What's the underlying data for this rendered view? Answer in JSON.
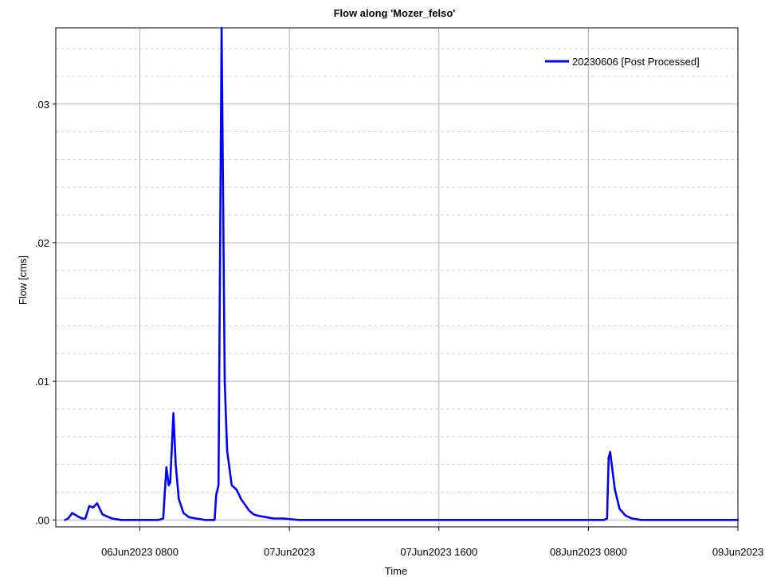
{
  "chart_data": {
    "type": "line",
    "title": "Flow along 'Mozer_felso'",
    "xlabel": "Time",
    "ylabel": "Flow [cms]",
    "x_tick_labels": [
      "06Jun2023 0800",
      "07Jun2023",
      "07Jun2023 1600",
      "08Jun2023 0800",
      "09Jun2023"
    ],
    "x_tick_values": [
      "2023-06-06 08:00",
      "2023-06-07 00:00",
      "2023-06-07 16:00",
      "2023-06-08 08:00",
      "2023-06-09 00:00"
    ],
    "xlim": [
      "2023-06-05 23:00",
      "2023-06-09 00:00"
    ],
    "y_tick_labels": [
      ".00",
      ".01",
      ".02",
      ".03"
    ],
    "y_tick_values": [
      0,
      0.01,
      0.02,
      0.03
    ],
    "ylim": [
      -0.0005,
      0.0355
    ],
    "grid": true,
    "legend_position": "top-right",
    "series": [
      {
        "name": "20230606 [Post Processed]",
        "color": "#0000ff",
        "x": [
          "2023-06-06 00:00",
          "2023-06-06 00:20",
          "2023-06-06 00:45",
          "2023-06-06 01:30",
          "2023-06-06 01:50",
          "2023-06-06 02:10",
          "2023-06-06 02:35",
          "2023-06-06 03:00",
          "2023-06-06 03:25",
          "2023-06-06 04:00",
          "2023-06-06 05:00",
          "2023-06-06 06:00",
          "2023-06-06 07:00",
          "2023-06-06 08:00",
          "2023-06-06 09:00",
          "2023-06-06 10:00",
          "2023-06-06 10:30",
          "2023-06-06 10:50",
          "2023-06-06 11:05",
          "2023-06-06 11:15",
          "2023-06-06 11:35",
          "2023-06-06 11:50",
          "2023-06-06 12:10",
          "2023-06-06 12:40",
          "2023-06-06 13:15",
          "2023-06-06 14:00",
          "2023-06-06 15:00",
          "2023-06-06 16:00",
          "2023-06-06 16:10",
          "2023-06-06 16:25",
          "2023-06-06 16:45",
          "2023-06-06 17:05",
          "2023-06-06 17:20",
          "2023-06-06 17:50",
          "2023-06-06 18:20",
          "2023-06-06 18:50",
          "2023-06-06 19:15",
          "2023-06-06 19:40",
          "2023-06-06 20:10",
          "2023-06-06 20:40",
          "2023-06-06 21:30",
          "2023-06-06 22:20",
          "2023-06-06 23:20",
          "2023-06-07 01:00",
          "2023-06-07 04:00",
          "2023-06-07 08:00",
          "2023-06-07 16:00",
          "2023-06-08 00:00",
          "2023-06-08 06:00",
          "2023-06-08 09:40",
          "2023-06-08 10:00",
          "2023-06-08 10:10",
          "2023-06-08 10:20",
          "2023-06-08 10:50",
          "2023-06-08 11:20",
          "2023-06-08 12:00",
          "2023-06-08 12:40",
          "2023-06-08 13:40",
          "2023-06-08 15:00",
          "2023-06-08 17:00",
          "2023-06-08 20:00",
          "2023-06-09 00:00"
        ],
        "values": [
          0.0,
          0.0001,
          0.0005,
          0.0002,
          0.0001,
          0.0001,
          0.001,
          0.0009,
          0.0012,
          0.0004,
          0.0001,
          0.0,
          0.0,
          0.0,
          0.0,
          0.0,
          0.0001,
          0.0038,
          0.0025,
          0.0027,
          0.0077,
          0.004,
          0.0015,
          0.0005,
          0.0002,
          0.0001,
          0.0,
          0.0,
          0.0018,
          0.0025,
          0.0355,
          0.01,
          0.005,
          0.0025,
          0.0022,
          0.0015,
          0.0011,
          0.0007,
          0.0004,
          0.0003,
          0.0002,
          0.0001,
          0.0001,
          0.0,
          0.0,
          0.0,
          0.0,
          0.0,
          0.0,
          0.0,
          0.0001,
          0.0045,
          0.0049,
          0.0022,
          0.0008,
          0.0003,
          0.0001,
          0.0,
          0.0,
          0.0,
          0.0,
          0.0
        ]
      }
    ]
  }
}
